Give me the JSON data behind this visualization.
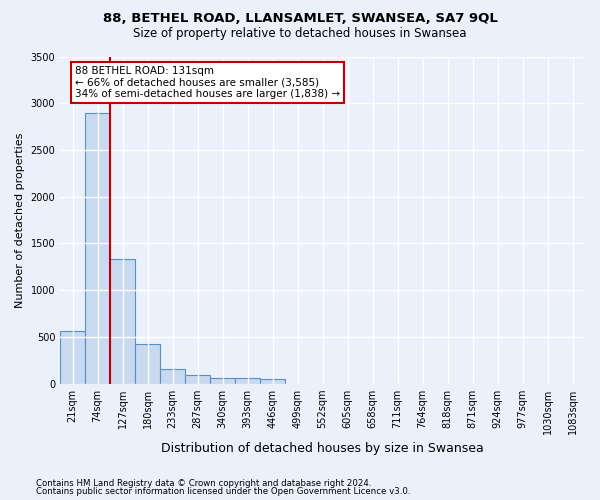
{
  "title": "88, BETHEL ROAD, LLANSAMLET, SWANSEA, SA7 9QL",
  "subtitle": "Size of property relative to detached houses in Swansea",
  "xlabel": "Distribution of detached houses by size in Swansea",
  "ylabel": "Number of detached properties",
  "footnote1": "Contains HM Land Registry data © Crown copyright and database right 2024.",
  "footnote2": "Contains public sector information licensed under the Open Government Licence v3.0.",
  "bin_labels": [
    "21sqm",
    "74sqm",
    "127sqm",
    "180sqm",
    "233sqm",
    "287sqm",
    "340sqm",
    "393sqm",
    "446sqm",
    "499sqm",
    "552sqm",
    "605sqm",
    "658sqm",
    "711sqm",
    "764sqm",
    "818sqm",
    "871sqm",
    "924sqm",
    "977sqm",
    "1030sqm",
    "1083sqm"
  ],
  "bar_values": [
    560,
    2900,
    1330,
    420,
    160,
    90,
    60,
    55,
    50,
    0,
    0,
    0,
    0,
    0,
    0,
    0,
    0,
    0,
    0,
    0,
    0
  ],
  "bar_color": "#c8d9f0",
  "bar_edgecolor": "#5a8fc0",
  "highlight_color": "#c00000",
  "annotation_text": "88 BETHEL ROAD: 131sqm\n← 66% of detached houses are smaller (3,585)\n34% of semi-detached houses are larger (1,838) →",
  "annotation_box_color": "#ffffff",
  "annotation_box_edgecolor": "#c00000",
  "red_line_x": 2,
  "ylim": [
    0,
    3500
  ],
  "bg_color": "#eaf1fb",
  "plot_bg_color": "#eaf1fb",
  "grid_color": "#ffffff"
}
